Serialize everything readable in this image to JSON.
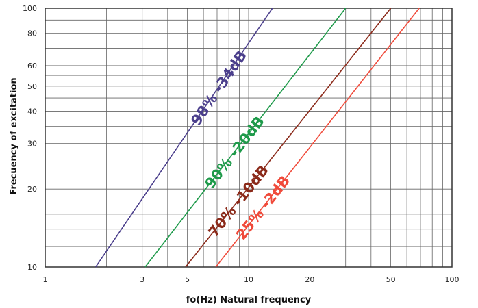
{
  "chart_data": {
    "type": "line",
    "xlabel": "fo(Hz) Natural frequency",
    "ylabel": "Frecuency of excitation",
    "x_scale": "log",
    "y_scale": "log",
    "xlim": [
      1,
      100
    ],
    "ylim": [
      10,
      100
    ],
    "grid": true,
    "x_ticks": [
      1,
      3,
      5,
      10,
      20,
      50,
      100
    ],
    "y_ticks": [
      10,
      20,
      30,
      40,
      50,
      60,
      80,
      100
    ],
    "series": [
      {
        "name": "98% -34dB",
        "color": "#4b3f8c",
        "x": [
          1.77,
          13.1
        ],
        "y": [
          10,
          100
        ]
      },
      {
        "name": "90% -20dB",
        "color": "#1e9a4a",
        "x": [
          3.1,
          30
        ],
        "y": [
          10,
          100
        ]
      },
      {
        "name": "70% -10dB",
        "color": "#8b2a1a",
        "x": [
          4.9,
          50
        ],
        "y": [
          10,
          100
        ]
      },
      {
        "name": "25% -2dB",
        "color": "#f04a3a",
        "x": [
          6.9,
          69
        ],
        "y": [
          10,
          100
        ]
      }
    ]
  }
}
